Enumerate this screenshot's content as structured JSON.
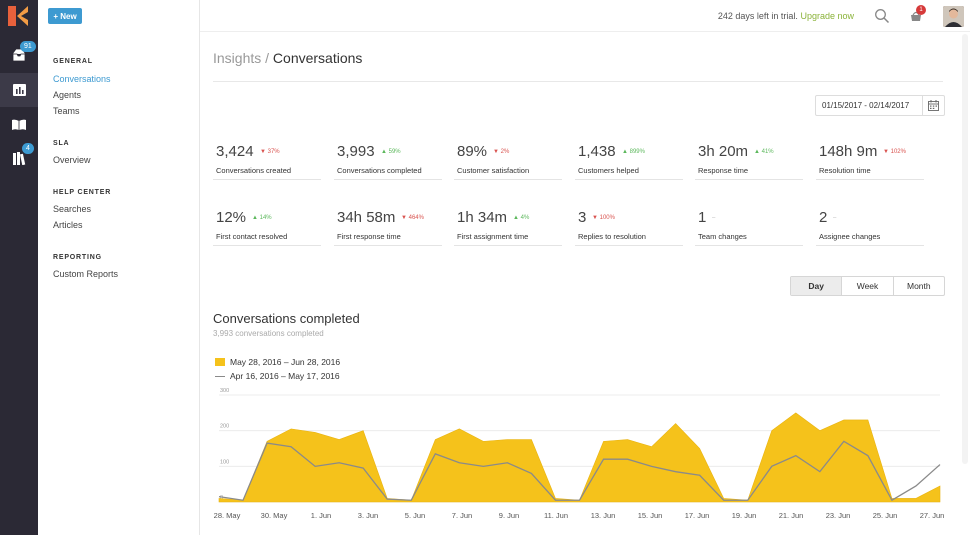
{
  "rail": {
    "badges": {
      "inbox": "91",
      "library": "4"
    }
  },
  "sidebar": {
    "new_button": "+ New",
    "sections": [
      {
        "title": "GENERAL",
        "items": [
          "Conversations",
          "Agents",
          "Teams"
        ]
      },
      {
        "title": "SLA",
        "items": [
          "Overview"
        ]
      },
      {
        "title": "HELP CENTER",
        "items": [
          "Searches",
          "Articles"
        ]
      },
      {
        "title": "REPORTING",
        "items": [
          "Custom Reports"
        ]
      }
    ]
  },
  "topbar": {
    "trial_text": "242 days left in trial.",
    "upgrade_link": "Upgrade now",
    "notification_count": "1"
  },
  "page": {
    "breadcrumb_parent": "Insights",
    "breadcrumb_sep": " / ",
    "breadcrumb_current": "Conversations",
    "date_range": "01/15/2017 - 02/14/2017"
  },
  "metrics": [
    {
      "value": "3,424",
      "change": "37%",
      "dir": "down",
      "label": "Conversations created"
    },
    {
      "value": "3,993",
      "change": "59%",
      "dir": "up",
      "label": "Conversations completed"
    },
    {
      "value": "89%",
      "change": "2%",
      "dir": "down",
      "label": "Customer satisfaction"
    },
    {
      "value": "1,438",
      "change": "899%",
      "dir": "up",
      "label": "Customers helped"
    },
    {
      "value": "3h 20m",
      "change": "41%",
      "dir": "up",
      "label": "Response time"
    },
    {
      "value": "148h 9m",
      "change": "102%",
      "dir": "down",
      "label": "Resolution time"
    },
    {
      "value": "12%",
      "change": "14%",
      "dir": "up",
      "label": "First contact resolved"
    },
    {
      "value": "34h 58m",
      "change": "464%",
      "dir": "down",
      "label": "First response time"
    },
    {
      "value": "1h 34m",
      "change": "4%",
      "dir": "up",
      "label": "First assignment time"
    },
    {
      "value": "3",
      "change": "100%",
      "dir": "down",
      "label": "Replies to resolution"
    },
    {
      "value": "1",
      "change": "–",
      "dir": "flat",
      "label": "Team changes"
    },
    {
      "value": "2",
      "change": "–",
      "dir": "flat",
      "label": "Assignee changes"
    }
  ],
  "granularity": {
    "options": [
      "Day",
      "Week",
      "Month"
    ],
    "selected": "Day"
  },
  "chart": {
    "title": "Conversations completed",
    "subtitle": "3,993 conversations completed"
  },
  "colors": {
    "accent": "#3d9ad1",
    "area": "#f5c21b",
    "line": "#8a8a8a",
    "rail": "#2b2935",
    "upgrade": "#8bb33a"
  },
  "chart_data": {
    "type": "area",
    "x_tick_labels": [
      "28. May",
      "30. May",
      "1. Jun",
      "3. Jun",
      "5. Jun",
      "7. Jun",
      "9. Jun",
      "11. Jun",
      "13. Jun",
      "15. Jun",
      "17. Jun",
      "19. Jun",
      "21. Jun",
      "23. Jun",
      "25. Jun",
      "27. Jun"
    ],
    "y_ticks": [
      0,
      100,
      200,
      300
    ],
    "ylim": [
      0,
      300
    ],
    "grid": true,
    "legend_position": "top-left",
    "series": [
      {
        "name": "May 28, 2016 – Jun 28, 2016",
        "type": "area",
        "values": [
          10,
          5,
          170,
          205,
          195,
          175,
          200,
          10,
          5,
          175,
          205,
          170,
          175,
          175,
          10,
          5,
          170,
          175,
          155,
          220,
          150,
          10,
          5,
          200,
          250,
          200,
          230,
          230,
          10,
          10,
          45
        ]
      },
      {
        "name": "Apr 16, 2016 – May 17, 2016",
        "type": "line",
        "values": [
          15,
          5,
          165,
          155,
          100,
          110,
          95,
          8,
          5,
          135,
          110,
          100,
          110,
          80,
          5,
          5,
          120,
          120,
          100,
          85,
          75,
          5,
          5,
          100,
          130,
          85,
          170,
          130,
          5,
          45,
          105
        ]
      }
    ]
  }
}
